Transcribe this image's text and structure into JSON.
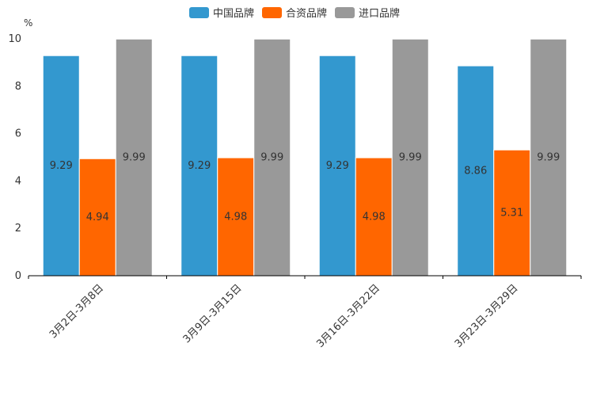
{
  "chart_data": {
    "type": "bar",
    "unit": "%",
    "categories": [
      "3月2日-3月8日",
      "3月9日-3月15日",
      "3月16日-3月22日",
      "3月23日-3月29日"
    ],
    "series": [
      {
        "name": "中国品牌",
        "color": "#3398cf",
        "values": [
          9.29,
          9.29,
          9.29,
          8.86
        ],
        "labels": [
          "9.29",
          "9.29",
          "9.29",
          "8.86"
        ]
      },
      {
        "name": "合资品牌",
        "color": "#ff6600",
        "values": [
          4.94,
          4.98,
          4.98,
          5.31
        ],
        "labels": [
          "4.94",
          "4.98",
          "4.98",
          "5.31"
        ]
      },
      {
        "name": "进口品牌",
        "color": "#999999",
        "values": [
          9.99,
          9.99,
          9.99,
          9.99
        ],
        "labels": [
          "9.99",
          "9.99",
          "9.99",
          "9.99"
        ]
      }
    ],
    "yticks": [
      "0",
      "2",
      "4",
      "6",
      "8",
      "10"
    ],
    "ylim": [
      0,
      10
    ],
    "legend_position": "top-center"
  }
}
